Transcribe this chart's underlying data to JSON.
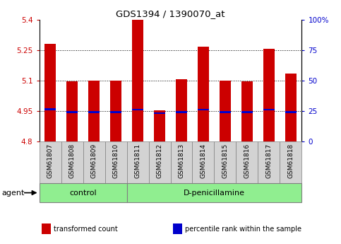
{
  "title": "GDS1394 / 1390070_at",
  "samples": [
    "GSM61807",
    "GSM61808",
    "GSM61809",
    "GSM61810",
    "GSM61811",
    "GSM61812",
    "GSM61813",
    "GSM61814",
    "GSM61815",
    "GSM61816",
    "GSM61817",
    "GSM61818"
  ],
  "bar_bottoms": [
    4.8,
    4.8,
    4.8,
    4.8,
    4.8,
    4.8,
    4.8,
    4.8,
    4.8,
    4.8,
    4.8,
    4.8
  ],
  "bar_tops": [
    5.28,
    5.095,
    5.1,
    5.1,
    5.4,
    4.955,
    5.105,
    5.265,
    5.1,
    5.095,
    5.255,
    5.135
  ],
  "percentile_vals": [
    4.958,
    4.945,
    4.945,
    4.944,
    4.957,
    4.94,
    4.944,
    4.957,
    4.944,
    4.944,
    4.957,
    4.945
  ],
  "groups": [
    {
      "label": "control",
      "start": 0,
      "end": 4
    },
    {
      "label": "D-penicillamine",
      "start": 4,
      "end": 12
    }
  ],
  "ylim": [
    4.8,
    5.4
  ],
  "yticks": [
    4.8,
    4.95,
    5.1,
    5.25,
    5.4
  ],
  "ytick_labels": [
    "4.8",
    "4.95",
    "5.1",
    "5.25",
    "5.4"
  ],
  "y2ticks": [
    0,
    25,
    50,
    75,
    100
  ],
  "y2tick_labels": [
    "0",
    "25",
    "50",
    "75",
    "100%"
  ],
  "dotted_lines": [
    4.95,
    5.1,
    5.25
  ],
  "bar_color": "#cc0000",
  "percentile_color": "#0000cc",
  "left_tick_color": "#cc0000",
  "right_tick_color": "#0000cc",
  "group_bg_color": "#90ee90",
  "sample_bg_color": "#d3d3d3",
  "agent_label": "agent",
  "legend_items": [
    {
      "color": "#cc0000",
      "label": "transformed count"
    },
    {
      "color": "#0000cc",
      "label": "percentile rank within the sample"
    }
  ],
  "bar_width": 0.5,
  "n_samples": 12,
  "n_control": 4,
  "n_treatment": 8
}
